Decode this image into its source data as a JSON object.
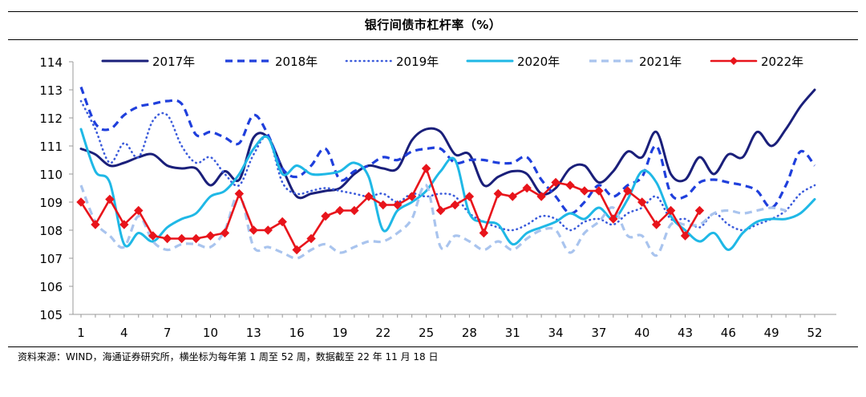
{
  "title": "银行间债市杠杆率（%）",
  "source": "资料来源：WIND，海通证券研究所，横坐标为每年第 1 周至 52 周，数据截至 22 年 11 月 18 日",
  "chart_data": {
    "type": "line",
    "title": "银行间债市杠杆率（%）",
    "xlabel": "",
    "ylabel": "",
    "xlim": [
      1,
      52
    ],
    "ylim": [
      105,
      114
    ],
    "yticks": [
      105,
      106,
      107,
      108,
      109,
      110,
      111,
      112,
      113,
      114
    ],
    "xticks": [
      1,
      4,
      7,
      10,
      13,
      16,
      19,
      22,
      25,
      28,
      31,
      34,
      37,
      40,
      43,
      46,
      49,
      52
    ],
    "grid": false,
    "legend_position": "top",
    "series": [
      {
        "name": "2017年",
        "color": "#1a1f7a",
        "style": "solid",
        "x": [
          1,
          2,
          3,
          4,
          5,
          6,
          7,
          8,
          9,
          10,
          11,
          12,
          13,
          14,
          15,
          16,
          17,
          18,
          19,
          20,
          21,
          22,
          23,
          24,
          25,
          26,
          27,
          28,
          29,
          30,
          31,
          32,
          33,
          34,
          35,
          36,
          37,
          38,
          39,
          40,
          41,
          42,
          43,
          44,
          45,
          46,
          47,
          48,
          49,
          50,
          51,
          52
        ],
        "values": [
          110.9,
          110.7,
          110.3,
          110.4,
          110.6,
          110.7,
          110.3,
          110.2,
          110.2,
          109.6,
          110.1,
          109.8,
          111.3,
          111.3,
          110.2,
          109.2,
          109.3,
          109.4,
          109.5,
          110.0,
          110.3,
          110.2,
          110.2,
          111.2,
          111.6,
          111.5,
          110.7,
          110.7,
          109.6,
          109.9,
          110.1,
          110.0,
          109.3,
          109.5,
          110.2,
          110.3,
          109.7,
          110.1,
          110.8,
          110.6,
          111.5,
          110.0,
          109.8,
          110.6,
          110.0,
          110.7,
          110.6,
          111.5,
          111.0,
          111.6,
          112.4,
          113.0
        ]
      },
      {
        "name": "2018年",
        "color": "#1f3fdc",
        "style": "dash",
        "x": [
          1,
          2,
          3,
          4,
          5,
          6,
          7,
          8,
          9,
          10,
          11,
          12,
          13,
          14,
          15,
          16,
          17,
          18,
          19,
          20,
          21,
          22,
          23,
          24,
          25,
          26,
          27,
          28,
          29,
          30,
          31,
          32,
          33,
          34,
          35,
          36,
          37,
          38,
          39,
          40,
          41,
          42,
          43,
          44,
          45,
          46,
          47,
          48,
          49,
          50,
          51,
          52
        ],
        "values": [
          113.1,
          111.8,
          111.6,
          112.1,
          112.4,
          112.5,
          112.6,
          112.5,
          111.4,
          111.5,
          111.3,
          111.1,
          112.1,
          111.4,
          110.2,
          109.9,
          110.3,
          110.9,
          109.8,
          110.1,
          110.3,
          110.6,
          110.5,
          110.8,
          110.9,
          110.9,
          110.4,
          110.5,
          110.5,
          110.4,
          110.4,
          110.6,
          109.8,
          109.2,
          108.6,
          109.0,
          109.6,
          109.2,
          109.6,
          109.9,
          111.0,
          109.3,
          109.2,
          109.7,
          109.8,
          109.7,
          109.6,
          109.4,
          108.8,
          109.6,
          110.8,
          110.3
        ]
      },
      {
        "name": "2019年",
        "color": "#3b5bdb",
        "style": "dot",
        "x": [
          1,
          2,
          3,
          4,
          5,
          6,
          7,
          8,
          9,
          10,
          11,
          12,
          13,
          14,
          15,
          16,
          17,
          18,
          19,
          20,
          21,
          22,
          23,
          24,
          25,
          26,
          27,
          28,
          29,
          30,
          31,
          32,
          33,
          34,
          35,
          36,
          37,
          38,
          39,
          40,
          41,
          42,
          43,
          44,
          45,
          46,
          47,
          48,
          49,
          50,
          51,
          52
        ],
        "values": [
          112.6,
          111.6,
          110.4,
          111.1,
          110.6,
          111.9,
          112.1,
          111.0,
          110.4,
          110.6,
          110.0,
          109.6,
          110.7,
          111.3,
          109.7,
          109.3,
          109.4,
          109.5,
          109.4,
          109.3,
          109.2,
          109.3,
          109.0,
          109.3,
          109.2,
          109.3,
          109.2,
          108.6,
          108.3,
          108.1,
          108.0,
          108.2,
          108.5,
          108.4,
          108.0,
          108.3,
          108.4,
          108.2,
          108.6,
          108.8,
          109.2,
          108.4,
          108.4,
          108.1,
          108.6,
          108.2,
          108.0,
          108.2,
          108.4,
          108.7,
          109.3,
          109.6
        ]
      },
      {
        "name": "2020年",
        "color": "#1fb8e6",
        "style": "solid",
        "x": [
          1,
          2,
          3,
          4,
          5,
          6,
          7,
          8,
          9,
          10,
          11,
          12,
          13,
          14,
          15,
          16,
          17,
          18,
          19,
          20,
          21,
          22,
          23,
          24,
          25,
          26,
          27,
          28,
          29,
          30,
          31,
          32,
          33,
          34,
          35,
          36,
          37,
          38,
          39,
          40,
          41,
          42,
          43,
          44,
          45,
          46,
          47,
          48,
          49,
          50,
          51,
          52
        ],
        "values": [
          111.6,
          110.1,
          109.7,
          107.5,
          107.9,
          107.6,
          108.1,
          108.4,
          108.6,
          109.2,
          109.4,
          110.0,
          110.9,
          111.3,
          110.0,
          110.3,
          110.0,
          110.0,
          110.1,
          110.4,
          109.9,
          108.0,
          108.7,
          109.0,
          109.4,
          110.1,
          110.5,
          108.6,
          108.3,
          108.2,
          107.5,
          107.9,
          108.1,
          108.3,
          108.6,
          108.4,
          108.8,
          108.4,
          109.1,
          110.1,
          109.7,
          108.5,
          108.0,
          107.6,
          107.9,
          107.3,
          107.9,
          108.3,
          108.4,
          108.4,
          108.6,
          109.1
        ]
      },
      {
        "name": "2021年",
        "color": "#a9c4ee",
        "style": "dash",
        "x": [
          1,
          2,
          3,
          4,
          5,
          6,
          7,
          8,
          9,
          10,
          11,
          12,
          13,
          14,
          15,
          16,
          17,
          18,
          19,
          20,
          21,
          22,
          23,
          24,
          25,
          26,
          27,
          28,
          29,
          30,
          31,
          32,
          33,
          34,
          35,
          36,
          37,
          38,
          39,
          40,
          41,
          42,
          43,
          44,
          45,
          46,
          47,
          48,
          49,
          50
        ],
        "values": [
          109.6,
          108.3,
          107.8,
          107.4,
          108.5,
          107.6,
          107.3,
          107.5,
          107.5,
          107.4,
          108.0,
          109.3,
          107.4,
          107.4,
          107.2,
          107.0,
          107.3,
          107.5,
          107.2,
          107.4,
          107.6,
          107.6,
          107.9,
          108.4,
          109.6,
          107.4,
          107.8,
          107.6,
          107.3,
          107.6,
          107.3,
          107.7,
          108.0,
          108.0,
          107.2,
          107.9,
          108.3,
          108.8,
          107.8,
          107.8,
          107.1,
          108.2,
          108.2,
          108.2,
          108.6,
          108.7,
          108.6,
          108.7,
          108.8,
          108.7
        ]
      },
      {
        "name": "2022年",
        "color": "#e8141b",
        "style": "solid-diamond",
        "x": [
          1,
          2,
          3,
          4,
          5,
          6,
          7,
          8,
          9,
          10,
          11,
          12,
          13,
          14,
          15,
          16,
          17,
          18,
          19,
          20,
          21,
          22,
          23,
          24,
          25,
          26,
          27,
          28,
          29,
          30,
          31,
          32,
          33,
          34,
          35,
          36,
          37,
          38,
          39,
          40,
          41,
          42,
          43,
          44
        ],
        "values": [
          109.0,
          108.2,
          109.1,
          108.2,
          108.7,
          107.8,
          107.7,
          107.7,
          107.7,
          107.8,
          107.9,
          109.3,
          108.0,
          108.0,
          108.3,
          107.3,
          107.7,
          108.5,
          108.7,
          108.7,
          109.2,
          108.9,
          108.9,
          109.2,
          110.2,
          108.7,
          108.9,
          109.2,
          107.9,
          109.3,
          109.2,
          109.5,
          109.2,
          109.7,
          109.6,
          109.4,
          109.4,
          108.4,
          109.4,
          109.0,
          108.2,
          108.7,
          107.8,
          108.7
        ]
      }
    ]
  }
}
